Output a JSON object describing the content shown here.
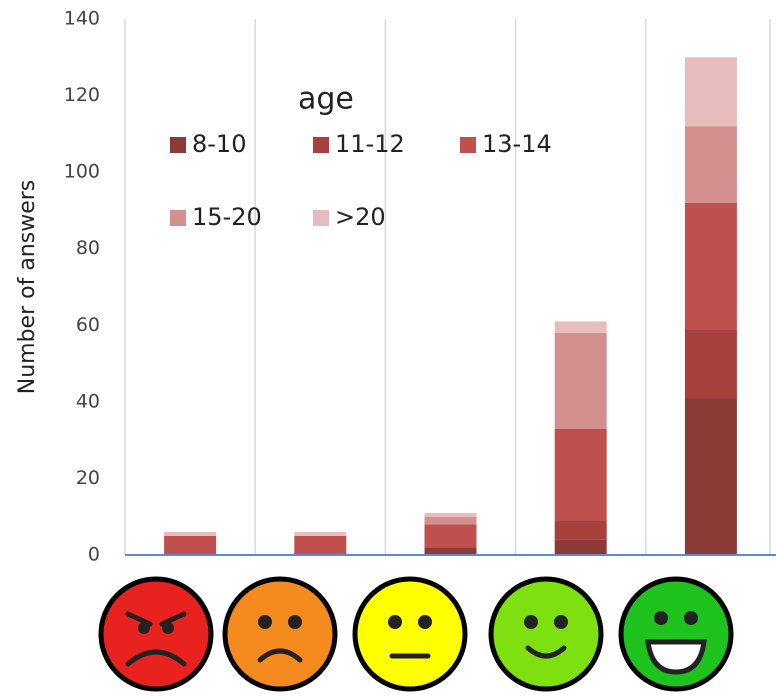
{
  "chart_data": {
    "type": "stacked_bar",
    "y_label": "Number of answers",
    "legend_title": "age",
    "categories": [
      null,
      null,
      null,
      null,
      null
    ],
    "series": [
      {
        "name": "8-10",
        "color": "#8b3a36",
        "values": [
          0,
          0,
          2,
          4,
          41
        ]
      },
      {
        "name": "11-12",
        "color": "#a8403d",
        "values": [
          0,
          0,
          0,
          5,
          18
        ]
      },
      {
        "name": "13-14",
        "color": "#c0504d",
        "values": [
          5,
          5,
          6,
          24,
          33
        ]
      },
      {
        "name": "15-20",
        "color": "#d4908e",
        "values": [
          0,
          0,
          2,
          25,
          20
        ]
      },
      {
        "name": ">20",
        "color": "#e6bdbc",
        "values": [
          1,
          1,
          1,
          3,
          18
        ]
      }
    ],
    "ylim": [
      0,
      140
    ],
    "yticks": [
      0,
      20,
      40,
      60,
      80,
      100,
      120,
      140
    ],
    "grid": true
  }
}
